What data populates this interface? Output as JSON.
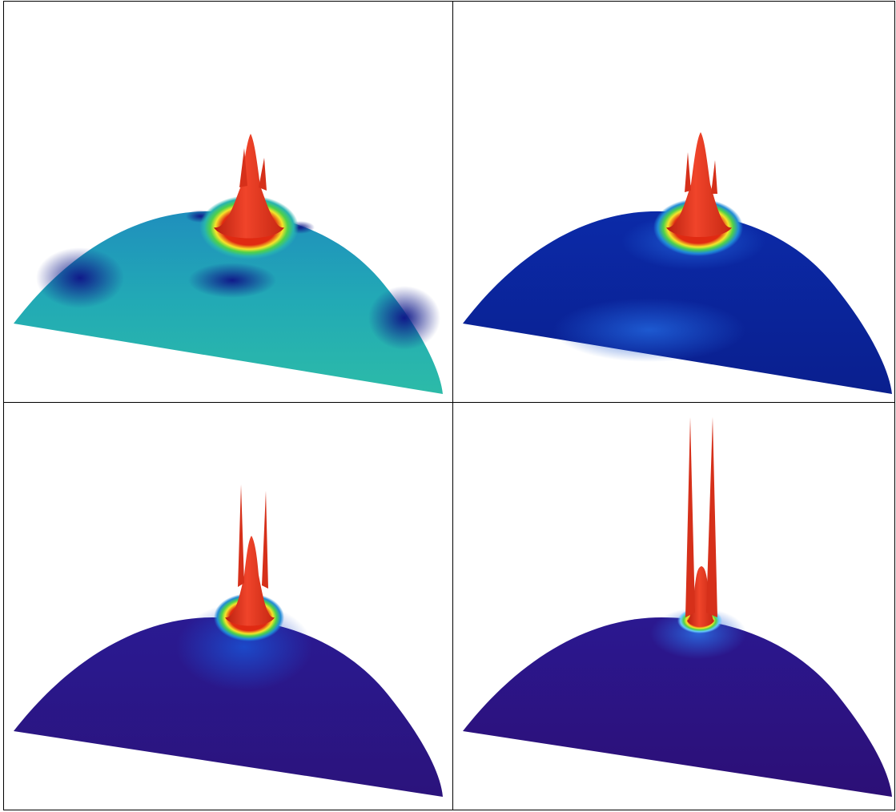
{
  "panels": [
    {
      "name": "panel-top-left",
      "colormap": "jet",
      "base_tone": "#1fa6b8"
    },
    {
      "name": "panel-top-right",
      "colormap": "jet",
      "base_tone": "#0a2a9c"
    },
    {
      "name": "panel-bottom-left",
      "colormap": "jet",
      "base_tone": "#2a1480"
    },
    {
      "name": "panel-bottom-right",
      "colormap": "jet",
      "base_tone": "#2a0f78"
    }
  ]
}
